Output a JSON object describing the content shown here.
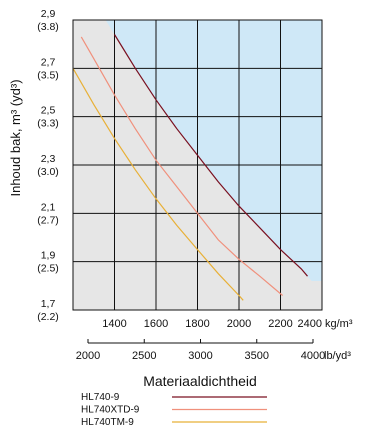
{
  "chart_data": {
    "type": "line",
    "ylabel": "Inhoud bak, m³ (yd³)",
    "xlabel": "Materiaaldichtheid",
    "x_primary": {
      "unit": "kg/m³",
      "lim": [
        1200,
        2400
      ],
      "ticks": [
        "1400",
        "1600",
        "1800",
        "2000",
        "2200",
        "2400"
      ]
    },
    "x_secondary": {
      "unit": "lb/yd³",
      "lim": [
        2000,
        4000
      ],
      "ticks": [
        "2000",
        "2500",
        "3000",
        "3500",
        "4000"
      ]
    },
    "y": {
      "lim": [
        1.7,
        2.9
      ],
      "ticks": [
        {
          "value": 2.9,
          "label": "2,9",
          "label2": "(3.8)"
        },
        {
          "value": 2.7,
          "label": "2,7",
          "label2": "(3.5)"
        },
        {
          "value": 2.5,
          "label": "2,5",
          "label2": "(3.3)"
        },
        {
          "value": 2.3,
          "label": "2,3",
          "label2": "(3.0)"
        },
        {
          "value": 2.1,
          "label": "2,1",
          "label2": "(2.7)"
        },
        {
          "value": 1.9,
          "label": "1,9",
          "label2": "(2.5)"
        },
        {
          "value": 1.7,
          "label": "1,7",
          "label2": "(2.2)"
        }
      ]
    },
    "grid": true,
    "legend_position": "bottom",
    "shaded_regions": [
      {
        "x_from": 1200,
        "x_to": 2400,
        "color": "#e6e6e6"
      },
      {
        "x_from_curve": "HL740-9",
        "x_to": 2400,
        "color": "#cfe8f7"
      }
    ],
    "series": [
      {
        "name": "HL740-9",
        "color": "#7a1020",
        "x": [
          1400,
          1500,
          1600,
          1700,
          1800,
          1900,
          2000,
          2100,
          2200,
          2300,
          2330
        ],
        "y": [
          2.84,
          2.7,
          2.57,
          2.45,
          2.34,
          2.23,
          2.13,
          2.04,
          1.95,
          1.87,
          1.84
        ]
      },
      {
        "name": "HL740XTD-9",
        "color": "#f0907c",
        "x": [
          1240,
          1300,
          1400,
          1500,
          1600,
          1700,
          1800,
          1900,
          2000,
          2100,
          2210
        ],
        "y": [
          2.83,
          2.74,
          2.59,
          2.45,
          2.32,
          2.21,
          2.1,
          1.99,
          1.91,
          1.84,
          1.76
        ]
      },
      {
        "name": "HL740TM-9",
        "color": "#e8b037",
        "x": [
          1200,
          1300,
          1400,
          1500,
          1600,
          1700,
          1800,
          1900,
          2000,
          2020
        ],
        "y": [
          2.7,
          2.55,
          2.41,
          2.28,
          2.16,
          2.05,
          1.95,
          1.85,
          1.76,
          1.74
        ]
      }
    ]
  }
}
